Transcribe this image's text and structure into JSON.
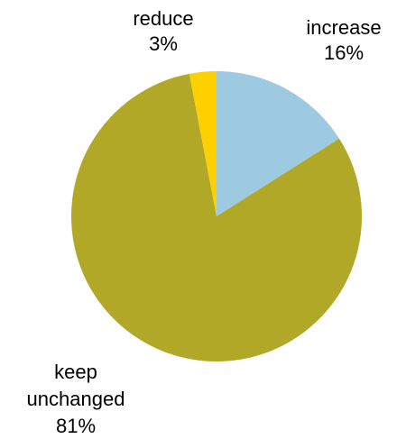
{
  "chart_data": {
    "type": "pie",
    "categories": [
      "increase",
      "keep unchanged",
      "reduce"
    ],
    "values": [
      16,
      81,
      3
    ],
    "labels": [
      {
        "lines": [
          "increase",
          "16%"
        ]
      },
      {
        "lines": [
          "keep",
          "unchanged",
          "81%"
        ]
      },
      {
        "lines": [
          "reduce",
          "3%"
        ]
      }
    ],
    "colors": [
      "#9ECAE1",
      "#B0A826",
      "#FFD000"
    ],
    "start": "12 o'clock",
    "direction": "clockwise",
    "legend": "none"
  }
}
